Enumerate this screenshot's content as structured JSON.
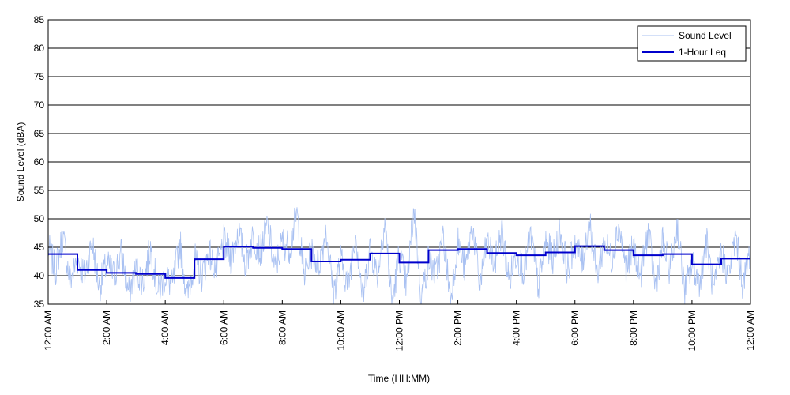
{
  "chart_data": {
    "type": "line",
    "title": "",
    "xlabel": "Time (HH:MM)",
    "ylabel": "Sound Level (dBA)",
    "ylim": [
      35,
      85
    ],
    "yticks": [
      35,
      40,
      45,
      50,
      55,
      60,
      65,
      70,
      75,
      80,
      85
    ],
    "xlim_hours": [
      0,
      24
    ],
    "xticks": [
      {
        "hour": 0,
        "label": "12:00 AM"
      },
      {
        "hour": 2,
        "label": "2:00 AM"
      },
      {
        "hour": 4,
        "label": "4:00 AM"
      },
      {
        "hour": 6,
        "label": "6:00 AM"
      },
      {
        "hour": 8,
        "label": "8:00 AM"
      },
      {
        "hour": 10,
        "label": "10:00 AM"
      },
      {
        "hour": 12,
        "label": "12:00 PM"
      },
      {
        "hour": 14,
        "label": "2:00 PM"
      },
      {
        "hour": 16,
        "label": "4:00 PM"
      },
      {
        "hour": 18,
        "label": "6:00 PM"
      },
      {
        "hour": 20,
        "label": "8:00 PM"
      },
      {
        "hour": 22,
        "label": "10:00 PM"
      },
      {
        "hour": 24,
        "label": "12:00 AM"
      }
    ],
    "grid": "horizontal",
    "legend_position": "top-right",
    "series": [
      {
        "name": "Sound Level",
        "color": "#a9c1f2",
        "style": "thin-line",
        "x_hours": [
          0,
          0.25,
          0.5,
          0.75,
          1,
          1.25,
          1.5,
          1.75,
          2,
          2.25,
          2.5,
          2.75,
          3,
          3.25,
          3.5,
          3.75,
          4,
          4.25,
          4.5,
          4.75,
          5,
          5.25,
          5.5,
          5.75,
          6,
          6.25,
          6.5,
          6.75,
          7,
          7.25,
          7.5,
          7.75,
          8,
          8.25,
          8.5,
          8.75,
          9,
          9.25,
          9.5,
          9.75,
          10,
          10.25,
          10.5,
          10.75,
          11,
          11.25,
          11.5,
          11.75,
          12,
          12.25,
          12.5,
          12.75,
          13,
          13.25,
          13.5,
          13.75,
          14,
          14.25,
          14.5,
          14.75,
          15,
          15.25,
          15.5,
          15.75,
          16,
          16.25,
          16.5,
          16.75,
          17,
          17.25,
          17.5,
          17.75,
          18,
          18.25,
          18.5,
          18.75,
          19,
          19.25,
          19.5,
          19.75,
          20,
          20.25,
          20.5,
          20.75,
          21,
          21.25,
          21.5,
          21.75,
          22,
          22.25,
          22.5,
          22.75,
          23,
          23.25,
          23.5,
          23.75,
          24
        ],
        "values": [
          45,
          41,
          47,
          39,
          43,
          40,
          46,
          38,
          42,
          40,
          44,
          37,
          41,
          39,
          45,
          37,
          40,
          38,
          46,
          36,
          43,
          40,
          44,
          41,
          46,
          43,
          48,
          42,
          47,
          44,
          49,
          41,
          46,
          45,
          51,
          40,
          44,
          42,
          48,
          37,
          43,
          38,
          48,
          36,
          45,
          40,
          50,
          35,
          44,
          38,
          52,
          36,
          43,
          40,
          47,
          36,
          46,
          41,
          49,
          38,
          46,
          42,
          48,
          39,
          44,
          41,
          47,
          38,
          46,
          43,
          48,
          41,
          46,
          42,
          50,
          40,
          46,
          43,
          49,
          41,
          45,
          40,
          48,
          38,
          46,
          41,
          49,
          37,
          42,
          39,
          46,
          37,
          44,
          40,
          47,
          38,
          45
        ]
      },
      {
        "name": "1-Hour Leq",
        "color": "#0000cc",
        "style": "step",
        "x_hours": [
          0,
          1,
          2,
          3,
          4,
          5,
          6,
          7,
          8,
          9,
          10,
          11,
          12,
          13,
          14,
          15,
          16,
          17,
          18,
          19,
          20,
          21,
          22,
          23
        ],
        "values": [
          43.8,
          41.0,
          40.5,
          40.3,
          39.6,
          42.9,
          45.1,
          44.9,
          44.7,
          42.5,
          42.8,
          43.9,
          42.3,
          44.5,
          44.7,
          44.0,
          43.6,
          44.1,
          45.2,
          44.5,
          43.6,
          43.8,
          42.0,
          43.0
        ]
      }
    ]
  }
}
